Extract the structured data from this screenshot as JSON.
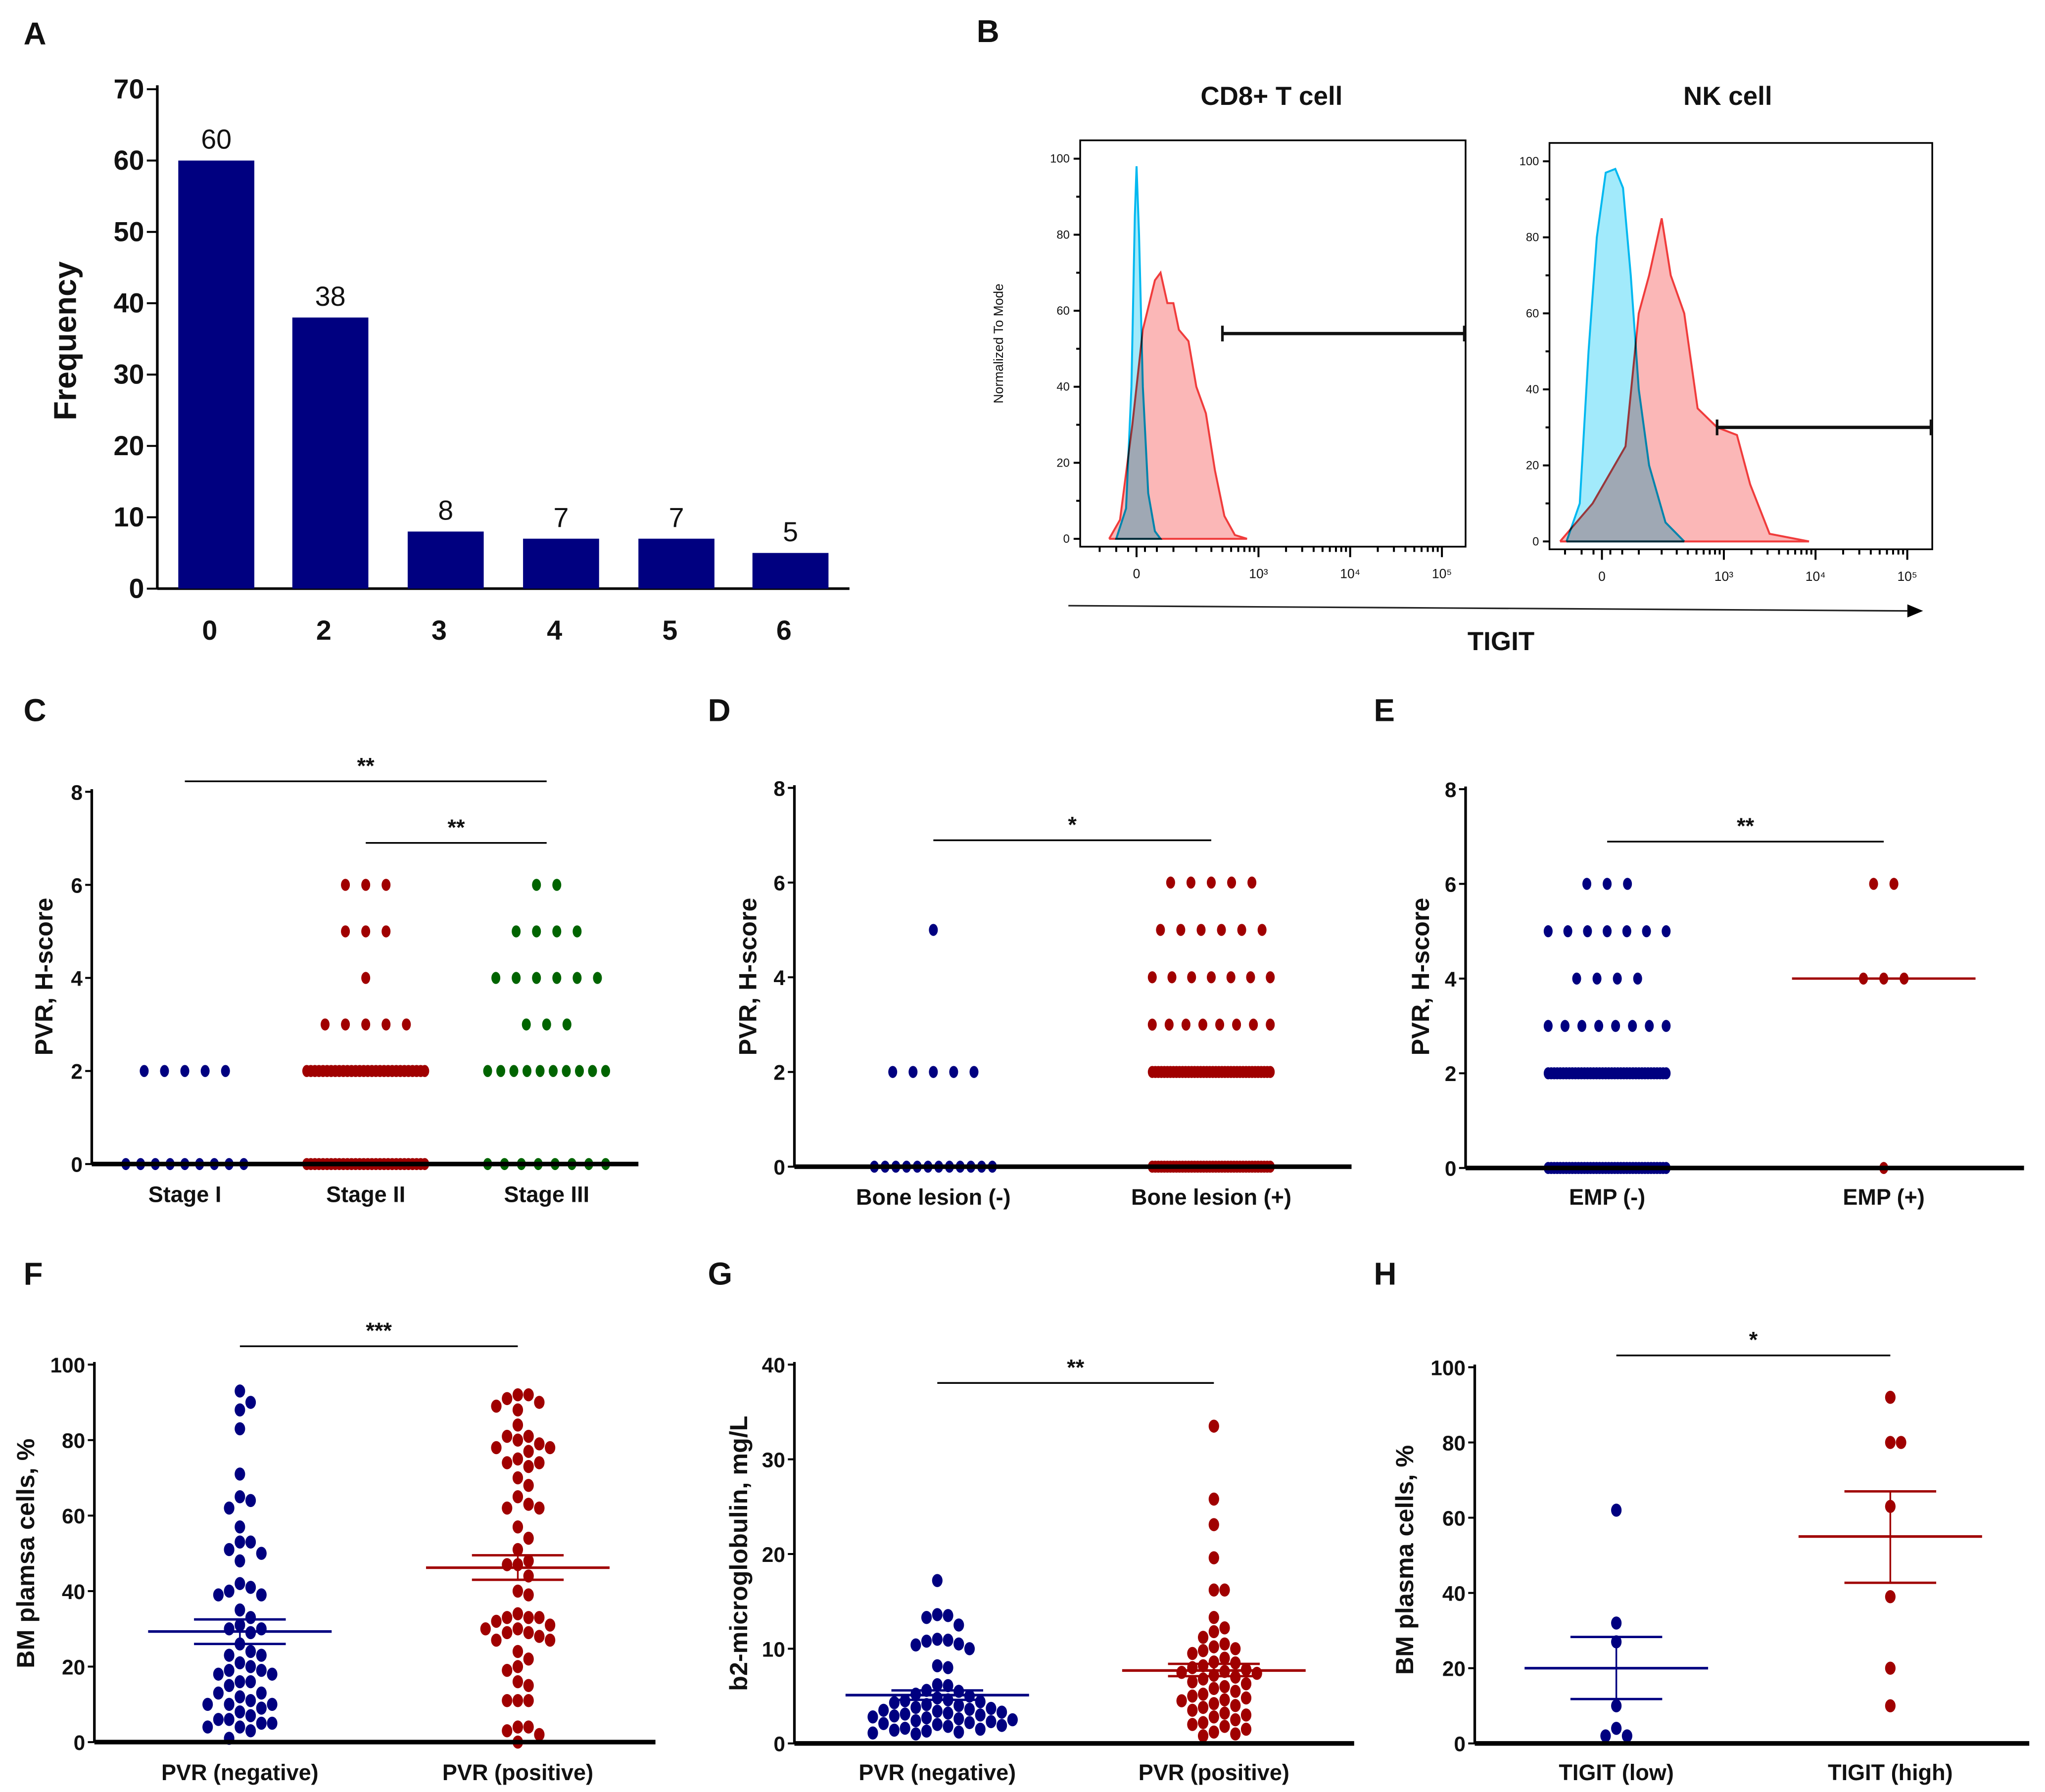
{
  "panel_letters": {
    "A": "A",
    "B": "B",
    "C": "C",
    "D": "D",
    "E": "E",
    "F": "F",
    "G": "G",
    "H": "H"
  },
  "chart_data": [
    {
      "panel": "A",
      "type": "bar",
      "categories": [
        "0",
        "2",
        "3",
        "4",
        "5",
        "6"
      ],
      "values": [
        60,
        38,
        8,
        7,
        7,
        5
      ],
      "data_labels": [
        "60",
        "38",
        "8",
        "7",
        "7",
        "5"
      ],
      "xlabel": "",
      "ylabel": "Frequency",
      "ylim": [
        0,
        70
      ],
      "yticks": [
        0,
        10,
        20,
        30,
        40,
        50,
        60,
        70
      ],
      "color": "#000080",
      "grid": false
    },
    {
      "panel": "B",
      "type": "histogram",
      "xlabel": "TIGIT",
      "ylabel": "Normalized To Mode",
      "xtick_values": [
        0,
        1000,
        10000,
        100000
      ],
      "xtick_labels": [
        "0",
        "10³",
        "10⁴",
        "10⁵"
      ],
      "yticks": [
        0,
        20,
        40,
        60,
        80,
        100
      ],
      "colors": {
        "control": "#00b8f0",
        "tigit": "#f03c3c"
      },
      "subplots": [
        {
          "title": "CD8+ T cell",
          "control": [
            [
              -50,
              0
            ],
            [
              -25,
              8
            ],
            [
              -12,
              40
            ],
            [
              -4,
              85
            ],
            [
              0,
              98
            ],
            [
              6,
              80
            ],
            [
              15,
              40
            ],
            [
              28,
              12
            ],
            [
              45,
              2
            ],
            [
              60,
              0
            ]
          ],
          "tigit": [
            [
              -70,
              0
            ],
            [
              -40,
              5
            ],
            [
              -10,
              30
            ],
            [
              15,
              55
            ],
            [
              45,
              68
            ],
            [
              60,
              70
            ],
            [
              80,
              62
            ],
            [
              100,
              62
            ],
            [
              120,
              55
            ],
            [
              160,
              52
            ],
            [
              200,
              40
            ],
            [
              260,
              33
            ],
            [
              330,
              18
            ],
            [
              420,
              6
            ],
            [
              550,
              1
            ],
            [
              750,
              0
            ]
          ],
          "gate": {
            "from": 400,
            "to": 250000,
            "level": 54
          }
        },
        {
          "title": "NK cell",
          "control": [
            [
              -95,
              0
            ],
            [
              -55,
              10
            ],
            [
              -32,
              50
            ],
            [
              -12,
              80
            ],
            [
              9,
              97
            ],
            [
              32,
              98
            ],
            [
              52,
              93
            ],
            [
              74,
              70
            ],
            [
              100,
              40
            ],
            [
              139,
              20
            ],
            [
              222,
              5
            ],
            [
              365,
              0
            ]
          ],
          "tigit": [
            [
              -118,
              0
            ],
            [
              -22,
              10
            ],
            [
              59,
              25
            ],
            [
              100,
              60
            ],
            [
              139,
              70
            ],
            [
              200,
              85
            ],
            [
              256,
              70
            ],
            [
              365,
              60
            ],
            [
              515,
              35
            ],
            [
              843,
              30
            ],
            [
              1390,
              28
            ],
            [
              1940,
              15
            ],
            [
              3160,
              2
            ],
            [
              8500,
              0
            ]
          ],
          "gate": {
            "from": 843,
            "to": 250000,
            "level": 30
          }
        }
      ]
    },
    {
      "panel": "C",
      "type": "scatter",
      "ylabel": "PVR, H-score",
      "ylim": [
        0,
        8
      ],
      "yticks": [
        0,
        2,
        4,
        6,
        8
      ],
      "groups": [
        {
          "label": "Stage I",
          "color": "#000080",
          "levels": [
            [
              2,
              5
            ],
            [
              0,
              9
            ]
          ]
        },
        {
          "label": "Stage II",
          "color": "#a00000",
          "levels": [
            [
              6,
              3
            ],
            [
              5,
              3
            ],
            [
              4,
              1
            ],
            [
              3,
              5
            ],
            [
              2,
              30
            ],
            [
              0,
              30
            ]
          ]
        },
        {
          "label": "Stage III",
          "color": "#006400",
          "levels": [
            [
              6,
              2
            ],
            [
              5,
              4
            ],
            [
              4,
              6
            ],
            [
              3,
              3
            ],
            [
              2,
              10
            ],
            [
              0,
              8
            ]
          ]
        }
      ],
      "significance": [
        {
          "from": 0,
          "to": 2,
          "label": "**"
        },
        {
          "from": 1,
          "to": 2,
          "label": "**"
        }
      ]
    },
    {
      "panel": "D",
      "type": "scatter",
      "ylabel": "PVR, H-score",
      "ylim": [
        0,
        8
      ],
      "yticks": [
        0,
        2,
        4,
        6,
        8
      ],
      "groups": [
        {
          "label": "Bone lesion (-)",
          "color": "#000080",
          "levels": [
            [
              5,
              1
            ],
            [
              2,
              5
            ],
            [
              0,
              12
            ]
          ]
        },
        {
          "label": "Bone lesion (+)",
          "color": "#a00000",
          "levels": [
            [
              6,
              5
            ],
            [
              5,
              6
            ],
            [
              4,
              7
            ],
            [
              3,
              8
            ],
            [
              2,
              40
            ],
            [
              0,
              40
            ]
          ]
        }
      ],
      "significance": [
        {
          "from": 0,
          "to": 1,
          "label": "*"
        }
      ]
    },
    {
      "panel": "E",
      "type": "scatter",
      "ylabel": "PVR, H-score",
      "ylim": [
        0,
        8
      ],
      "yticks": [
        0,
        2,
        4,
        6,
        8
      ],
      "groups": [
        {
          "label": "EMP (-)",
          "color": "#000080",
          "levels": [
            [
              6,
              3
            ],
            [
              5,
              7
            ],
            [
              4,
              4
            ],
            [
              3,
              8
            ],
            [
              2,
              40
            ],
            [
              0,
              40
            ]
          ]
        },
        {
          "label": "EMP (+)",
          "color": "#a00000",
          "levels": [
            [
              6,
              2
            ],
            [
              4,
              3
            ],
            [
              0,
              1
            ]
          ],
          "median": 4
        }
      ],
      "significance": [
        {
          "from": 0,
          "to": 1,
          "label": "**"
        }
      ]
    },
    {
      "panel": "F",
      "type": "scatter",
      "ylabel": "BM plamsa cells, %",
      "ylim": [
        0,
        100
      ],
      "yticks": [
        0,
        20,
        40,
        60,
        80,
        100
      ],
      "groups": [
        {
          "label": "PVR (negative)",
          "color": "#000080",
          "mean": 29.3,
          "sem_upper": 32.5,
          "sem_lower": 26.0,
          "values": [
            93,
            90,
            88,
            83,
            71,
            65,
            64,
            62,
            57,
            53,
            53,
            51,
            50,
            48,
            42,
            41,
            40,
            39,
            39,
            35,
            33,
            31,
            30,
            30,
            29,
            26,
            24,
            23,
            23,
            21,
            20,
            19,
            19,
            18,
            18,
            16,
            16,
            15,
            13,
            13,
            12,
            11,
            10,
            10,
            10,
            9,
            8,
            7,
            6,
            6,
            5,
            5,
            4,
            4,
            3,
            1
          ]
        },
        {
          "label": "PVR (positive)",
          "color": "#a00000",
          "mean": 46.2,
          "sem_upper": 49.5,
          "sem_lower": 43.0,
          "values": [
            92,
            92,
            91,
            90,
            89,
            88,
            84,
            81,
            81,
            80,
            79,
            78,
            78,
            77,
            75,
            74,
            74,
            73,
            70,
            68,
            65,
            63,
            62,
            62,
            57,
            54,
            51,
            48,
            47,
            47,
            44,
            40,
            39,
            34,
            33,
            33,
            33,
            32,
            31,
            30,
            30,
            29,
            29,
            28,
            27,
            27,
            24,
            22,
            20,
            19,
            16,
            15,
            11,
            11,
            11,
            4,
            4,
            3,
            2,
            0
          ]
        }
      ],
      "significance": [
        {
          "from": 0,
          "to": 1,
          "label": "***"
        }
      ]
    },
    {
      "panel": "G",
      "type": "scatter",
      "ylabel": "b2-microglobulin, mg/L",
      "ylim": [
        0,
        40
      ],
      "yticks": [
        0,
        10,
        20,
        30,
        40
      ],
      "groups": [
        {
          "label": "PVR (negative)",
          "color": "#000080",
          "mean": 5.1,
          "sem_upper": 5.6,
          "sem_lower": 4.6,
          "values": [
            17.2,
            13.6,
            13.5,
            13.3,
            12.5,
            11.0,
            10.9,
            10.8,
            10.5,
            10.4,
            10.0,
            8.2,
            8.0,
            6.2,
            6.1,
            5.6,
            5.5,
            5.2,
            5.0,
            4.8,
            4.6,
            4.5,
            4.4,
            4.3,
            4.1,
            4.0,
            3.8,
            3.7,
            3.6,
            3.5,
            3.4,
            3.3,
            3.2,
            3.1,
            3.0,
            2.9,
            2.8,
            2.7,
            2.6,
            2.5,
            2.4,
            2.3,
            2.2,
            2.1,
            2.0,
            1.9,
            1.8,
            1.6,
            1.5,
            1.4,
            1.3,
            1.2,
            1.1,
            1.0
          ]
        },
        {
          "label": "PVR (positive)",
          "color": "#a00000",
          "mean": 7.7,
          "sem_upper": 8.4,
          "sem_lower": 7.1,
          "values": [
            33.5,
            25.8,
            23.1,
            19.6,
            16.2,
            16.2,
            13.3,
            12.2,
            11.8,
            11.2,
            10.5,
            10.2,
            10.0,
            9.8,
            9.5,
            9.0,
            8.6,
            8.5,
            8.2,
            8.0,
            7.8,
            7.6,
            7.5,
            7.4,
            7.2,
            7.0,
            6.8,
            6.5,
            6.3,
            6.0,
            5.8,
            5.5,
            5.2,
            5.0,
            4.8,
            4.6,
            4.5,
            4.2,
            4.0,
            3.8,
            3.5,
            3.2,
            3.0,
            2.8,
            2.5,
            2.2,
            2.0,
            1.8,
            1.5,
            1.2,
            1.0,
            0.8
          ]
        }
      ],
      "significance": [
        {
          "from": 0,
          "to": 1,
          "label": "**"
        }
      ]
    },
    {
      "panel": "H",
      "type": "scatter",
      "ylabel": "BM plasma cells, %",
      "ylim": [
        0,
        100
      ],
      "yticks": [
        0,
        20,
        40,
        60,
        80,
        100
      ],
      "groups": [
        {
          "label": "TIGIT (low)",
          "color": "#000080",
          "mean": 20.0,
          "sem_upper": 28.3,
          "sem_lower": 11.8,
          "values": [
            62,
            32,
            27,
            10,
            4,
            2,
            2
          ]
        },
        {
          "label": "TIGIT (high)",
          "color": "#a00000",
          "mean": 55.0,
          "sem_upper": 67.0,
          "sem_lower": 42.7,
          "values": [
            92,
            80,
            80,
            63,
            39,
            20,
            10
          ]
        }
      ],
      "significance": [
        {
          "from": 0,
          "to": 1,
          "label": "*"
        }
      ]
    }
  ]
}
